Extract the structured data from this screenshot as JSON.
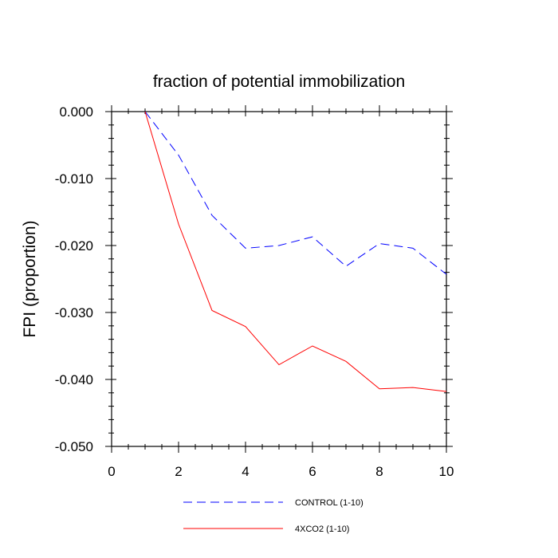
{
  "chart_data": {
    "type": "line",
    "title": "fraction of potential immobilization",
    "xlabel": "",
    "ylabel": "FPI  (proportion)",
    "xlim": [
      0,
      10
    ],
    "ylim": [
      -0.05,
      0.0
    ],
    "x_ticks": [
      0,
      2,
      4,
      6,
      8,
      10
    ],
    "x_tick_labels": [
      "0",
      "2",
      "4",
      "6",
      "8",
      "10"
    ],
    "y_ticks": [
      0.0,
      -0.01,
      -0.02,
      -0.03,
      -0.04,
      -0.05
    ],
    "y_tick_labels": [
      "0.000",
      "-0.010",
      "-0.020",
      "-0.030",
      "-0.040",
      "-0.050"
    ],
    "grid": false,
    "legend_position": "bottom",
    "x": [
      1,
      2,
      3,
      4,
      5,
      6,
      7,
      8,
      9,
      10
    ],
    "series": [
      {
        "name": "CONTROL (1-10)",
        "color": "#0000ff",
        "style": "dashed",
        "values": [
          0.0,
          -0.0065,
          -0.0155,
          -0.0204,
          -0.02,
          -0.0187,
          -0.0231,
          -0.0197,
          -0.0204,
          -0.0243
        ]
      },
      {
        "name": "4XCO2 (1-10)",
        "color": "#ff0000",
        "style": "solid",
        "values": [
          0.0,
          -0.0168,
          -0.0297,
          -0.0321,
          -0.0378,
          -0.035,
          -0.0373,
          -0.0414,
          -0.0412,
          -0.0418
        ]
      }
    ]
  }
}
